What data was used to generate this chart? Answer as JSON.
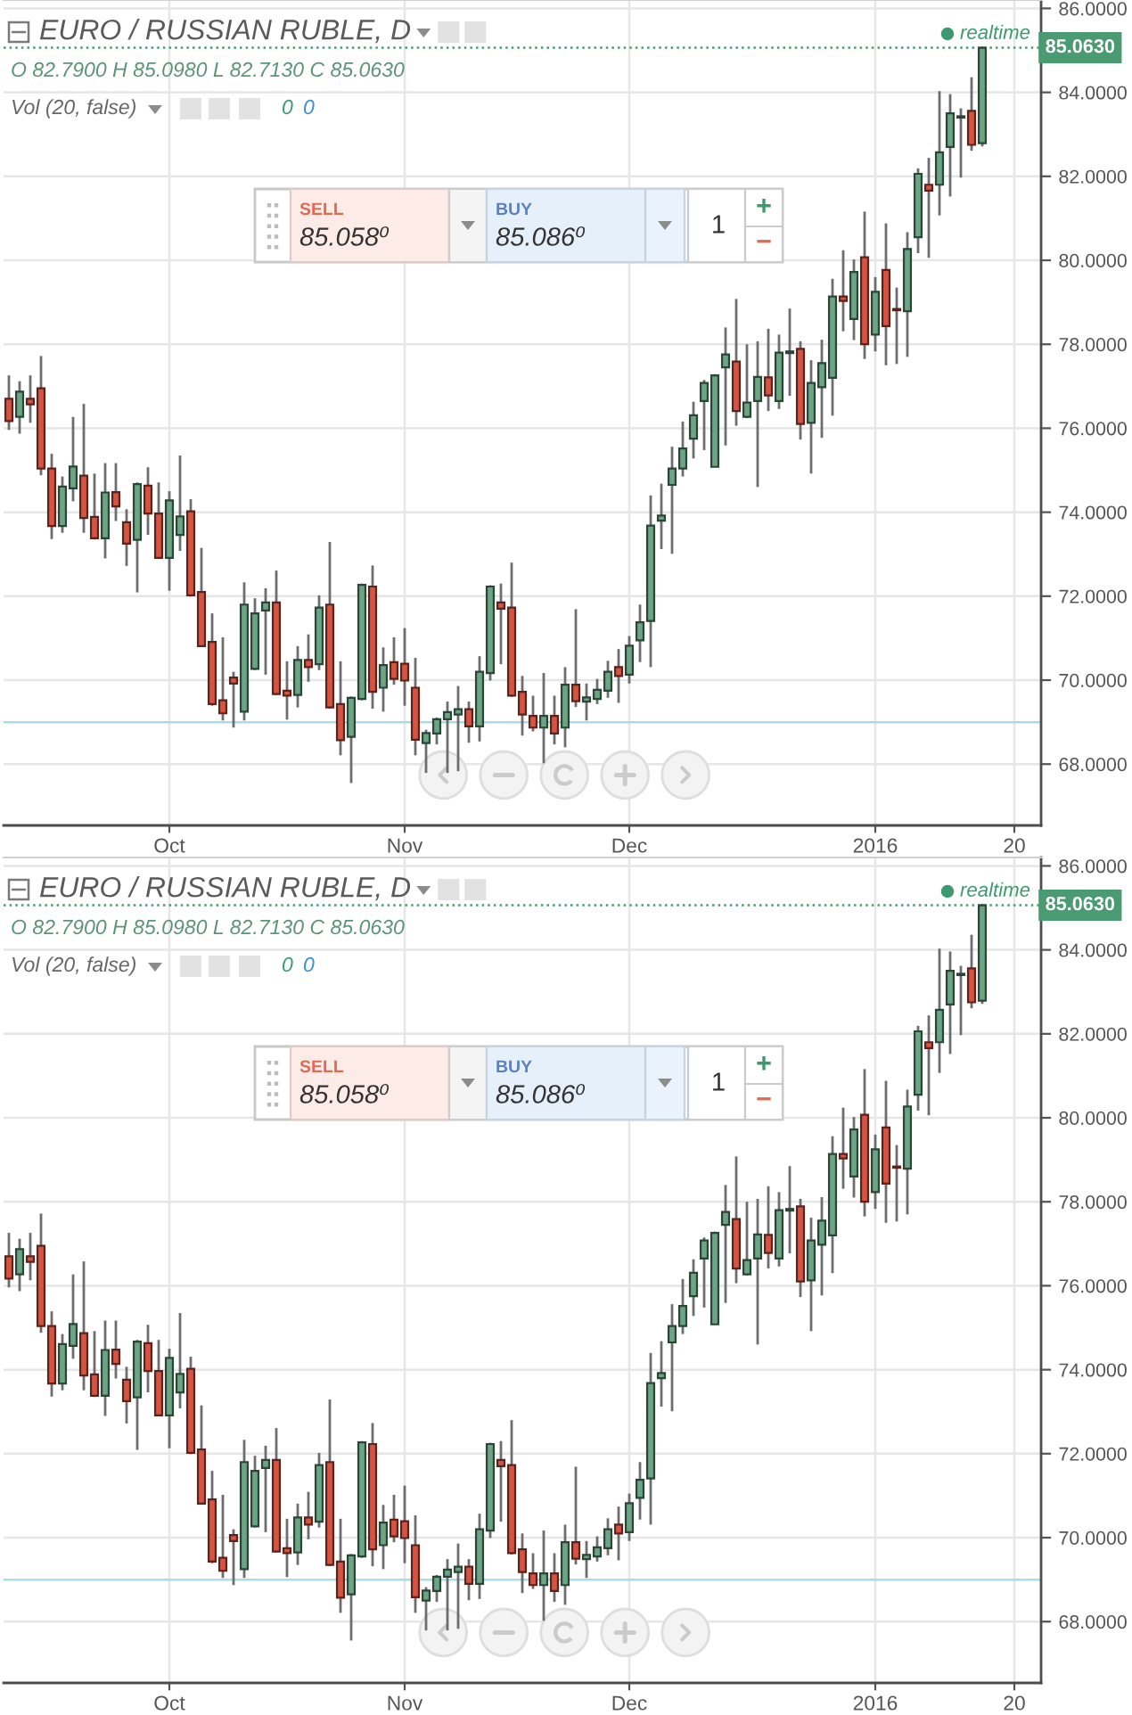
{
  "chart_data": [
    {
      "type": "candlestick",
      "title": "EURO / RUSSIAN RUBLE, D",
      "subtitle": "O 82.7900 H 85.0980 L 82.7130 C 85.0630",
      "annotations": [
        "realtime",
        "Vol (20, false)",
        "0",
        "0",
        "SELL",
        "85.058⁰",
        "BUY",
        "85.086⁰",
        "1",
        "+",
        "−"
      ],
      "categories": [
        null,
        null,
        null,
        null,
        null,
        null,
        null,
        null,
        null,
        null,
        null,
        null,
        null,
        null,
        null,
        "Oct",
        null,
        null,
        null,
        null,
        null,
        null,
        null,
        null,
        null,
        null,
        null,
        null,
        null,
        null,
        null,
        null,
        null,
        null,
        null,
        null,
        null,
        "Nov",
        null,
        null,
        null,
        null,
        null,
        null,
        null,
        null,
        null,
        null,
        null,
        null,
        null,
        null,
        null,
        null,
        null,
        null,
        null,
        null,
        "Dec",
        null,
        null,
        null,
        null,
        null,
        null,
        null,
        null,
        null,
        null,
        null,
        null,
        null,
        null,
        null,
        null,
        null,
        null,
        null,
        null,
        null,
        null,
        "2016",
        null,
        null,
        null,
        null,
        null,
        null,
        null,
        null,
        null,
        null,
        null,
        null,
        "20",
        null,
        null
      ],
      "ohlc": [
        [
          76.7,
          77.26,
          75.96,
          76.17
        ],
        [
          76.27,
          77.12,
          75.87,
          76.87
        ],
        [
          76.7,
          77.26,
          76.13,
          76.57
        ],
        [
          76.95,
          77.72,
          74.88,
          75.04
        ],
        [
          75.04,
          75.39,
          73.36,
          73.67
        ],
        [
          73.67,
          74.85,
          73.51,
          74.61
        ],
        [
          74.57,
          76.27,
          74.26,
          75.09
        ],
        [
          74.87,
          76.58,
          73.51,
          73.86
        ],
        [
          73.89,
          74.92,
          73.35,
          73.38
        ],
        [
          73.38,
          75.17,
          72.9,
          74.47
        ],
        [
          74.48,
          75.17,
          73.79,
          74.14
        ],
        [
          73.76,
          74.07,
          72.72,
          73.25
        ],
        [
          73.34,
          74.71,
          72.09,
          74.67
        ],
        [
          74.63,
          75.07,
          73.46,
          73.97
        ],
        [
          73.97,
          74.71,
          72.9,
          72.91
        ],
        [
          72.91,
          74.5,
          72.13,
          74.28
        ],
        [
          73.46,
          75.35,
          73.08,
          73.9
        ],
        [
          74.02,
          74.31,
          71.99,
          72.02
        ],
        [
          72.1,
          73.15,
          70.81,
          70.81
        ],
        [
          70.91,
          71.59,
          69.39,
          69.43
        ],
        [
          69.52,
          71.02,
          69.04,
          69.21
        ],
        [
          70.06,
          70.2,
          68.87,
          69.92
        ],
        [
          69.25,
          72.33,
          69.04,
          71.8
        ],
        [
          70.27,
          71.95,
          70.24,
          71.59
        ],
        [
          71.66,
          72.19,
          70.13,
          71.85
        ],
        [
          71.85,
          72.61,
          69.65,
          69.67
        ],
        [
          69.75,
          70.45,
          69.06,
          69.63
        ],
        [
          69.65,
          70.81,
          69.35,
          70.48
        ],
        [
          70.48,
          71.09,
          69.96,
          70.31
        ],
        [
          70.38,
          72.02,
          70.24,
          71.73
        ],
        [
          71.8,
          73.29,
          69.32,
          69.35
        ],
        [
          69.43,
          70.45,
          68.21,
          68.57
        ],
        [
          68.65,
          69.61,
          67.55,
          69.58
        ],
        [
          69.55,
          72.3,
          69.52,
          72.27
        ],
        [
          72.23,
          72.73,
          69.32,
          69.72
        ],
        [
          69.82,
          70.78,
          69.25,
          70.36
        ],
        [
          70.43,
          71.02,
          69.89,
          70.03
        ],
        [
          70.39,
          71.24,
          69.39,
          69.99
        ],
        [
          69.82,
          70.53,
          68.21,
          68.58
        ],
        [
          68.5,
          68.82,
          67.79,
          68.74
        ],
        [
          68.73,
          69.11,
          68.47,
          69.07
        ],
        [
          69.07,
          69.49,
          67.79,
          69.24
        ],
        [
          69.18,
          69.86,
          67.83,
          69.31
        ],
        [
          69.31,
          69.49,
          68.51,
          68.9
        ],
        [
          68.9,
          70.57,
          68.54,
          70.2
        ],
        [
          70.17,
          72.26,
          69.99,
          72.23
        ],
        [
          71.85,
          72.3,
          70.38,
          71.7
        ],
        [
          71.73,
          72.8,
          69.6,
          69.63
        ],
        [
          69.72,
          70.1,
          68.68,
          69.18
        ],
        [
          69.15,
          69.63,
          68.78,
          68.87
        ],
        [
          68.87,
          70.17,
          68.02,
          69.15
        ],
        [
          69.15,
          69.63,
          68.47,
          68.73
        ],
        [
          68.87,
          70.31,
          68.4,
          69.89
        ],
        [
          69.89,
          71.69,
          69.36,
          69.5
        ],
        [
          69.49,
          69.92,
          69.04,
          69.59
        ],
        [
          69.55,
          70.03,
          69.43,
          69.77
        ],
        [
          69.75,
          70.46,
          69.58,
          70.2
        ],
        [
          70.31,
          70.74,
          69.46,
          70.1
        ],
        [
          70.13,
          71.05,
          69.92,
          70.82
        ],
        [
          70.95,
          71.8,
          70.43,
          71.38
        ],
        [
          71.41,
          74.4,
          70.31,
          73.68
        ],
        [
          73.8,
          74.68,
          73.12,
          73.92
        ],
        [
          74.65,
          75.56,
          73.01,
          75.04
        ],
        [
          75.04,
          76.16,
          74.85,
          75.52
        ],
        [
          75.75,
          76.63,
          75.28,
          76.31
        ],
        [
          76.65,
          77.15,
          75.48,
          77.08
        ],
        [
          75.08,
          77.29,
          75.08,
          77.26
        ],
        [
          77.45,
          78.4,
          75.59,
          77.76
        ],
        [
          77.59,
          79.08,
          76.06,
          76.41
        ],
        [
          76.27,
          78.0,
          76.24,
          76.61
        ],
        [
          76.65,
          78.07,
          74.6,
          77.22
        ],
        [
          77.21,
          78.37,
          76.41,
          76.78
        ],
        [
          76.65,
          78.23,
          76.46,
          77.8
        ],
        [
          77.79,
          78.85,
          76.77,
          77.83
        ],
        [
          77.89,
          78.07,
          75.73,
          76.1
        ],
        [
          76.13,
          77.62,
          74.92,
          77.08
        ],
        [
          76.98,
          78.11,
          75.77,
          77.55
        ],
        [
          77.2,
          79.56,
          76.3,
          79.14
        ],
        [
          79.14,
          80.24,
          78.31,
          79.03
        ],
        [
          78.6,
          80.02,
          78.1,
          79.72
        ],
        [
          80.07,
          81.16,
          77.65,
          78.0
        ],
        [
          78.23,
          79.6,
          77.83,
          79.25
        ],
        [
          79.77,
          80.88,
          77.5,
          78.43
        ],
        [
          78.84,
          79.35,
          77.53,
          78.81
        ],
        [
          78.79,
          80.67,
          77.7,
          80.27
        ],
        [
          80.55,
          82.19,
          80.17,
          82.06
        ],
        [
          81.8,
          82.44,
          80.06,
          81.66
        ],
        [
          81.8,
          84.03,
          81.07,
          82.57
        ],
        [
          82.7,
          83.96,
          81.52,
          83.5
        ],
        [
          83.4,
          83.62,
          81.97,
          83.43
        ],
        [
          83.56,
          84.36,
          82.61,
          82.75
        ],
        [
          82.79,
          85.098,
          82.713,
          85.063
        ],
        null,
        null,
        null,
        null,
        null
      ],
      "colors": [
        "#d75442",
        "#6ba583",
        "#d75442",
        "#d75442",
        "#d75442",
        "#6ba583",
        "#6ba583",
        "#d75442",
        "#d75442",
        "#6ba583",
        "#d75442",
        "#d75442",
        "#6ba583",
        "#d75442",
        "#d75442",
        "#6ba583",
        "#6ba583",
        "#d75442",
        "#d75442",
        "#d75442",
        "#d75442",
        "#d75442",
        "#6ba583",
        "#6ba583",
        "#6ba583",
        "#d75442",
        "#d75442",
        "#6ba583",
        "#d75442",
        "#6ba583",
        "#d75442",
        "#d75442",
        "#6ba583",
        "#6ba583",
        "#d75442",
        "#6ba583",
        "#d75442",
        "#d75442",
        "#d75442",
        "#6ba583",
        "#6ba583",
        "#6ba583",
        "#6ba583",
        "#d75442",
        "#6ba583",
        "#6ba583",
        "#d75442",
        "#d75442",
        "#d75442",
        "#d75442",
        "#6ba583",
        "#d75442",
        "#6ba583",
        "#d75442",
        "#6ba583",
        "#6ba583",
        "#6ba583",
        "#d75442",
        "#6ba583",
        "#6ba583",
        "#6ba583",
        "#6ba583",
        "#6ba583",
        "#6ba583",
        "#6ba583",
        "#6ba583",
        "#6ba583",
        "#6ba583",
        "#d75442",
        "#6ba583",
        "#6ba583",
        "#d75442",
        "#6ba583",
        "#6ba583",
        "#d75442",
        "#6ba583",
        "#6ba583",
        "#6ba583",
        "#d75442",
        "#6ba583",
        "#d75442",
        "#6ba583",
        "#d75442",
        "#d75442",
        "#6ba583",
        "#6ba583",
        "#d75442",
        "#6ba583",
        "#6ba583",
        "#6ba583",
        "#d75442",
        "#6ba583",
        null,
        null,
        null,
        null,
        null
      ],
      "ylim": [
        66.54,
        86.2
      ],
      "yticks": [
        {
          "value": 68,
          "label": "68.0000"
        },
        {
          "value": 70,
          "label": "70.0000"
        },
        {
          "value": 72,
          "label": "72.0000"
        },
        {
          "value": 74,
          "label": "74.0000"
        },
        {
          "value": 76,
          "label": "76.0000"
        },
        {
          "value": 78,
          "label": "78.0000"
        },
        {
          "value": 80,
          "label": "80.0000"
        },
        {
          "value": 82,
          "label": "82.0000"
        },
        {
          "value": 84,
          "label": "84.0000"
        },
        {
          "value": 86,
          "label": "86.0000"
        }
      ],
      "ref_lines": [
        {
          "axis": "y",
          "value": 85.063,
          "label": "85.0630",
          "color": "#4a9a72",
          "line_style": "dotted"
        },
        {
          "axis": "y",
          "value": 69.0,
          "color": "#a9dbe8",
          "line_style": "solid"
        }
      ],
      "grid": true
    },
    {
      "type": "candlestick",
      "title": "EURO / RUSSIAN RUBLE, D",
      "subtitle": "O 82.7900 H 85.0980 L 82.7130 C 85.0630",
      "annotations": [
        "realtime",
        "Vol (20, false)",
        "0",
        "0",
        "SELL",
        "85.058⁰",
        "BUY",
        "85.086⁰",
        "1",
        "+",
        "−"
      ],
      "categories": [
        null,
        null,
        null,
        null,
        null,
        null,
        null,
        null,
        null,
        null,
        null,
        null,
        null,
        null,
        null,
        "Oct",
        null,
        null,
        null,
        null,
        null,
        null,
        null,
        null,
        null,
        null,
        null,
        null,
        null,
        null,
        null,
        null,
        null,
        null,
        null,
        null,
        null,
        "Nov",
        null,
        null,
        null,
        null,
        null,
        null,
        null,
        null,
        null,
        null,
        null,
        null,
        null,
        null,
        null,
        null,
        null,
        null,
        null,
        null,
        "Dec",
        null,
        null,
        null,
        null,
        null,
        null,
        null,
        null,
        null,
        null,
        null,
        null,
        null,
        null,
        null,
        null,
        null,
        null,
        null,
        null,
        null,
        null,
        "2016",
        null,
        null,
        null,
        null,
        null,
        null,
        null,
        null,
        null,
        null,
        null,
        null,
        "20",
        null,
        null
      ],
      "ohlc": [
        [
          76.7,
          77.26,
          75.96,
          76.17
        ],
        [
          76.27,
          77.12,
          75.87,
          76.87
        ],
        [
          76.7,
          77.26,
          76.13,
          76.57
        ],
        [
          76.95,
          77.72,
          74.88,
          75.04
        ],
        [
          75.04,
          75.39,
          73.36,
          73.67
        ],
        [
          73.67,
          74.85,
          73.51,
          74.61
        ],
        [
          74.57,
          76.27,
          74.26,
          75.09
        ],
        [
          74.87,
          76.58,
          73.51,
          73.86
        ],
        [
          73.89,
          74.92,
          73.35,
          73.38
        ],
        [
          73.38,
          75.17,
          72.9,
          74.47
        ],
        [
          74.48,
          75.17,
          73.79,
          74.14
        ],
        [
          73.76,
          74.07,
          72.72,
          73.25
        ],
        [
          73.34,
          74.71,
          72.09,
          74.67
        ],
        [
          74.63,
          75.07,
          73.46,
          73.97
        ],
        [
          73.97,
          74.71,
          72.9,
          72.91
        ],
        [
          72.91,
          74.5,
          72.13,
          74.28
        ],
        [
          73.46,
          75.35,
          73.08,
          73.9
        ],
        [
          74.02,
          74.31,
          71.99,
          72.02
        ],
        [
          72.1,
          73.15,
          70.81,
          70.81
        ],
        [
          70.91,
          71.59,
          69.39,
          69.43
        ],
        [
          69.52,
          71.02,
          69.04,
          69.21
        ],
        [
          70.06,
          70.2,
          68.87,
          69.92
        ],
        [
          69.25,
          72.33,
          69.04,
          71.8
        ],
        [
          70.27,
          71.95,
          70.24,
          71.59
        ],
        [
          71.66,
          72.19,
          70.13,
          71.85
        ],
        [
          71.85,
          72.61,
          69.65,
          69.67
        ],
        [
          69.75,
          70.45,
          69.06,
          69.63
        ],
        [
          69.65,
          70.81,
          69.35,
          70.48
        ],
        [
          70.48,
          71.09,
          69.96,
          70.31
        ],
        [
          70.38,
          72.02,
          70.24,
          71.73
        ],
        [
          71.8,
          73.29,
          69.32,
          69.35
        ],
        [
          69.43,
          70.45,
          68.21,
          68.57
        ],
        [
          68.65,
          69.61,
          67.55,
          69.58
        ],
        [
          69.55,
          72.3,
          69.52,
          72.27
        ],
        [
          72.23,
          72.73,
          69.32,
          69.72
        ],
        [
          69.82,
          70.78,
          69.25,
          70.36
        ],
        [
          70.43,
          71.02,
          69.89,
          70.03
        ],
        [
          70.39,
          71.24,
          69.39,
          69.99
        ],
        [
          69.82,
          70.53,
          68.21,
          68.58
        ],
        [
          68.5,
          68.82,
          67.79,
          68.74
        ],
        [
          68.73,
          69.11,
          68.47,
          69.07
        ],
        [
          69.07,
          69.49,
          67.79,
          69.24
        ],
        [
          69.18,
          69.86,
          67.83,
          69.31
        ],
        [
          69.31,
          69.49,
          68.51,
          68.9
        ],
        [
          68.9,
          70.57,
          68.54,
          70.2
        ],
        [
          70.17,
          72.26,
          69.99,
          72.23
        ],
        [
          71.85,
          72.3,
          70.38,
          71.7
        ],
        [
          71.73,
          72.8,
          69.6,
          69.63
        ],
        [
          69.72,
          70.1,
          68.68,
          69.18
        ],
        [
          69.15,
          69.63,
          68.78,
          68.87
        ],
        [
          68.87,
          70.17,
          68.02,
          69.15
        ],
        [
          69.15,
          69.63,
          68.47,
          68.73
        ],
        [
          68.87,
          70.31,
          68.4,
          69.89
        ],
        [
          69.89,
          71.69,
          69.36,
          69.5
        ],
        [
          69.49,
          69.92,
          69.04,
          69.59
        ],
        [
          69.55,
          70.03,
          69.43,
          69.77
        ],
        [
          69.75,
          70.46,
          69.58,
          70.2
        ],
        [
          70.31,
          70.74,
          69.46,
          70.1
        ],
        [
          70.13,
          71.05,
          69.92,
          70.82
        ],
        [
          70.95,
          71.8,
          70.43,
          71.38
        ],
        [
          71.41,
          74.4,
          70.31,
          73.68
        ],
        [
          73.8,
          74.68,
          73.12,
          73.92
        ],
        [
          74.65,
          75.56,
          73.01,
          75.04
        ],
        [
          75.04,
          76.16,
          74.85,
          75.52
        ],
        [
          75.75,
          76.63,
          75.28,
          76.31
        ],
        [
          76.65,
          77.15,
          75.48,
          77.08
        ],
        [
          75.08,
          77.29,
          75.08,
          77.26
        ],
        [
          77.45,
          78.4,
          75.59,
          77.76
        ],
        [
          77.59,
          79.08,
          76.06,
          76.41
        ],
        [
          76.27,
          78.0,
          76.24,
          76.61
        ],
        [
          76.65,
          78.07,
          74.6,
          77.22
        ],
        [
          77.21,
          78.37,
          76.41,
          76.78
        ],
        [
          76.65,
          78.23,
          76.46,
          77.8
        ],
        [
          77.79,
          78.85,
          76.77,
          77.83
        ],
        [
          77.89,
          78.07,
          75.73,
          76.1
        ],
        [
          76.13,
          77.62,
          74.92,
          77.08
        ],
        [
          76.98,
          78.11,
          75.77,
          77.55
        ],
        [
          77.2,
          79.56,
          76.3,
          79.14
        ],
        [
          79.14,
          80.24,
          78.31,
          79.03
        ],
        [
          78.6,
          80.02,
          78.1,
          79.72
        ],
        [
          80.07,
          81.16,
          77.65,
          78.0
        ],
        [
          78.23,
          79.6,
          77.83,
          79.25
        ],
        [
          79.77,
          80.88,
          77.5,
          78.43
        ],
        [
          78.84,
          79.35,
          77.53,
          78.81
        ],
        [
          78.79,
          80.67,
          77.7,
          80.27
        ],
        [
          80.55,
          82.19,
          80.17,
          82.06
        ],
        [
          81.8,
          82.44,
          80.06,
          81.66
        ],
        [
          81.8,
          84.03,
          81.07,
          82.57
        ],
        [
          82.7,
          83.96,
          81.52,
          83.5
        ],
        [
          83.4,
          83.62,
          81.97,
          83.43
        ],
        [
          83.56,
          84.36,
          82.61,
          82.75
        ],
        [
          82.79,
          85.098,
          82.713,
          85.063
        ],
        null,
        null,
        null,
        null,
        null
      ],
      "colors": [
        "#d75442",
        "#6ba583",
        "#d75442",
        "#d75442",
        "#d75442",
        "#6ba583",
        "#6ba583",
        "#d75442",
        "#d75442",
        "#6ba583",
        "#d75442",
        "#d75442",
        "#6ba583",
        "#d75442",
        "#d75442",
        "#6ba583",
        "#6ba583",
        "#d75442",
        "#d75442",
        "#d75442",
        "#d75442",
        "#d75442",
        "#6ba583",
        "#6ba583",
        "#6ba583",
        "#d75442",
        "#d75442",
        "#6ba583",
        "#d75442",
        "#6ba583",
        "#d75442",
        "#d75442",
        "#6ba583",
        "#6ba583",
        "#d75442",
        "#6ba583",
        "#d75442",
        "#d75442",
        "#d75442",
        "#6ba583",
        "#6ba583",
        "#6ba583",
        "#6ba583",
        "#d75442",
        "#6ba583",
        "#6ba583",
        "#d75442",
        "#d75442",
        "#d75442",
        "#d75442",
        "#6ba583",
        "#d75442",
        "#6ba583",
        "#d75442",
        "#6ba583",
        "#6ba583",
        "#6ba583",
        "#d75442",
        "#6ba583",
        "#6ba583",
        "#6ba583",
        "#6ba583",
        "#6ba583",
        "#6ba583",
        "#6ba583",
        "#6ba583",
        "#6ba583",
        "#6ba583",
        "#d75442",
        "#6ba583",
        "#6ba583",
        "#d75442",
        "#6ba583",
        "#6ba583",
        "#d75442",
        "#6ba583",
        "#6ba583",
        "#6ba583",
        "#d75442",
        "#6ba583",
        "#d75442",
        "#6ba583",
        "#d75442",
        "#d75442",
        "#6ba583",
        "#6ba583",
        "#d75442",
        "#6ba583",
        "#6ba583",
        "#6ba583",
        "#d75442",
        "#6ba583",
        null,
        null,
        null,
        null,
        null
      ],
      "ylim": [
        66.54,
        86.2
      ],
      "yticks": [
        {
          "value": 68,
          "label": "68.0000"
        },
        {
          "value": 70,
          "label": "70.0000"
        },
        {
          "value": 72,
          "label": "72.0000"
        },
        {
          "value": 74,
          "label": "74.0000"
        },
        {
          "value": 76,
          "label": "76.0000"
        },
        {
          "value": 78,
          "label": "78.0000"
        },
        {
          "value": 80,
          "label": "80.0000"
        },
        {
          "value": 82,
          "label": "82.0000"
        },
        {
          "value": 84,
          "label": "84.0000"
        },
        {
          "value": 86,
          "label": "86.0000"
        }
      ],
      "ref_lines": [
        {
          "axis": "y",
          "value": 85.063,
          "label": "85.0630",
          "color": "#4a9a72",
          "line_style": "dotted"
        },
        {
          "axis": "y",
          "value": 69.0,
          "color": "#a9dbe8",
          "line_style": "solid"
        }
      ],
      "grid": true
    }
  ]
}
